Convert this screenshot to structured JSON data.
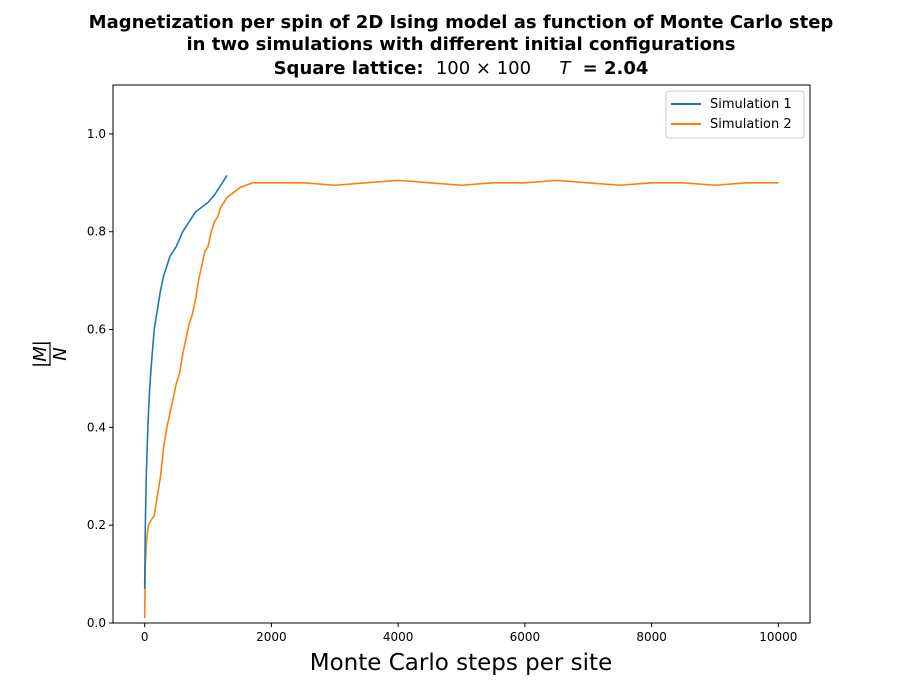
{
  "chart_data": {
    "type": "line",
    "title_lines": [
      "Magnetization per spin of 2D Ising model as function of Monte Carlo step",
      "in two simulations with different initial configurations"
    ],
    "title_line3": {
      "prefix": "Square lattice:",
      "size": "100 × 100",
      "temp_symbol": "T",
      "temp_value": "= 2.04"
    },
    "xlabel": "Monte Carlo steps per site",
    "ylabel": {
      "numerator": "|M|",
      "denominator": "N"
    },
    "xlim": [
      -500,
      10500
    ],
    "ylim": [
      0,
      1.1
    ],
    "xticks": [
      0,
      2000,
      4000,
      6000,
      8000,
      10000
    ],
    "yticks": [
      0.0,
      0.2,
      0.4,
      0.6,
      0.8,
      1.0
    ],
    "ytick_labels": [
      "0.0",
      "0.2",
      "0.4",
      "0.6",
      "0.8",
      "1.0"
    ],
    "legend_position": "upper right",
    "series": [
      {
        "name": "Simulation 1",
        "color": "#1f77b4",
        "x": [
          0,
          10,
          25,
          50,
          75,
          100,
          150,
          200,
          250,
          300,
          350,
          400,
          450,
          500,
          600,
          700,
          800,
          900,
          1000,
          1100,
          1200,
          1300
        ],
        "y": [
          0.07,
          0.2,
          0.3,
          0.4,
          0.47,
          0.52,
          0.6,
          0.64,
          0.68,
          0.71,
          0.73,
          0.75,
          0.76,
          0.77,
          0.8,
          0.82,
          0.84,
          0.85,
          0.86,
          0.875,
          0.895,
          0.915
        ]
      },
      {
        "name": "Simulation 2",
        "color": "#ff7f0e",
        "x": [
          0,
          10,
          30,
          60,
          100,
          150,
          200,
          250,
          300,
          350,
          400,
          450,
          500,
          550,
          600,
          650,
          700,
          750,
          800,
          850,
          900,
          950,
          1000,
          1050,
          1100,
          1150,
          1200,
          1250,
          1300,
          1400,
          1500,
          1700,
          2000,
          2500,
          3000,
          3500,
          4000,
          4500,
          5000,
          5500,
          6000,
          6500,
          7000,
          7500,
          8000,
          8500,
          9000,
          9500,
          10000
        ],
        "y": [
          0.01,
          0.12,
          0.17,
          0.2,
          0.21,
          0.22,
          0.26,
          0.3,
          0.36,
          0.4,
          0.43,
          0.46,
          0.49,
          0.51,
          0.55,
          0.58,
          0.61,
          0.63,
          0.66,
          0.7,
          0.73,
          0.76,
          0.77,
          0.8,
          0.82,
          0.83,
          0.85,
          0.86,
          0.87,
          0.88,
          0.89,
          0.9,
          0.9,
          0.9,
          0.895,
          0.9,
          0.905,
          0.9,
          0.895,
          0.9,
          0.9,
          0.905,
          0.9,
          0.895,
          0.9,
          0.9,
          0.895,
          0.9,
          0.9
        ]
      }
    ]
  }
}
